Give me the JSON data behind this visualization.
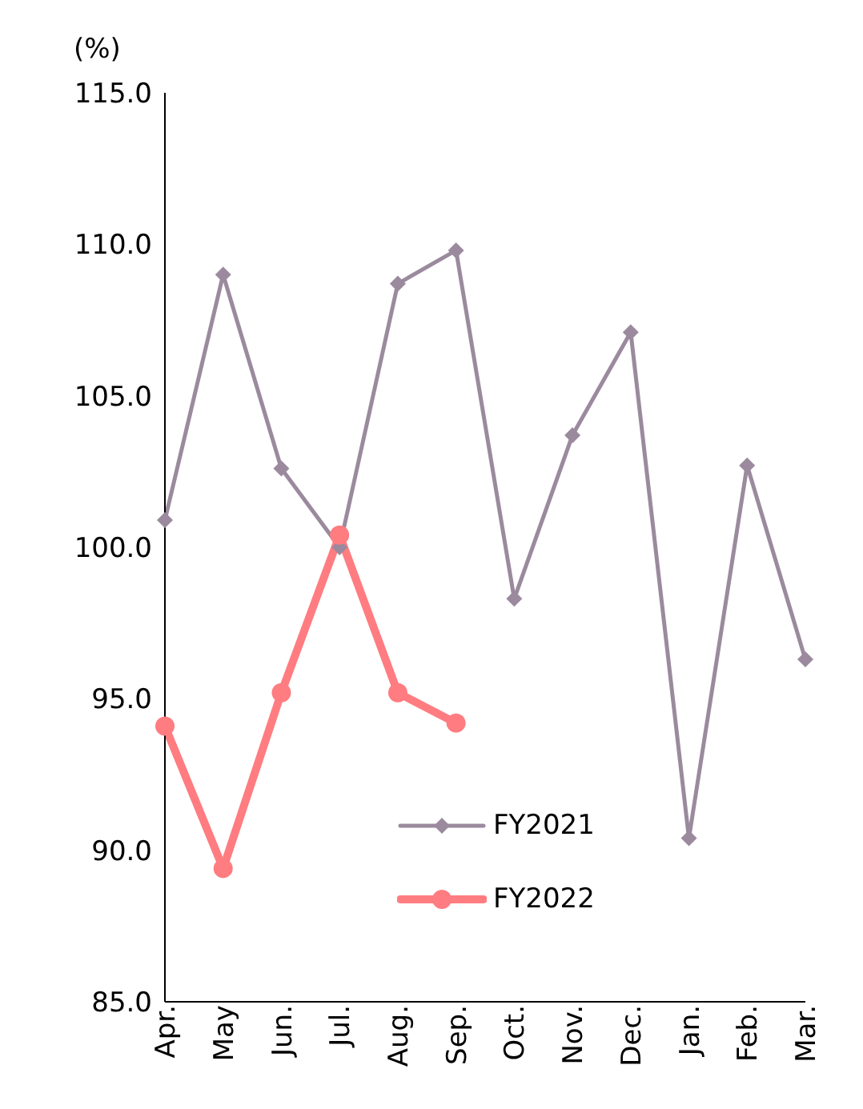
{
  "chart_data": {
    "type": "line",
    "ylabel": "(%)",
    "categories": [
      "Apr.",
      "May",
      "Jun.",
      "Jul.",
      "Aug.",
      "Sep.",
      "Oct.",
      "Nov.",
      "Dec.",
      "Jan.",
      "Feb.",
      "Mar."
    ],
    "series": [
      {
        "name": "FY2021",
        "color": "#9b8a9e",
        "marker": "diamond",
        "values": [
          100.9,
          109.0,
          102.6,
          100.0,
          108.7,
          109.8,
          98.3,
          103.7,
          107.1,
          90.4,
          102.7,
          96.3
        ]
      },
      {
        "name": "FY2022",
        "color": "#ff7c80",
        "marker": "circle",
        "values": [
          94.1,
          89.4,
          95.2,
          100.4,
          95.2,
          94.2,
          null,
          null,
          null,
          null,
          null,
          null
        ]
      }
    ],
    "ylim": [
      85,
      115
    ],
    "yticks": [
      {
        "value": 85,
        "label": "85.0"
      },
      {
        "value": 90,
        "label": "90.0"
      },
      {
        "value": 95,
        "label": "95.0"
      },
      {
        "value": 100,
        "label": "100.0"
      },
      {
        "value": 105,
        "label": "105.0"
      },
      {
        "value": 110,
        "label": "110.0"
      },
      {
        "value": 115,
        "label": "115.0"
      }
    ],
    "grid": false,
    "legend": "bottom"
  }
}
